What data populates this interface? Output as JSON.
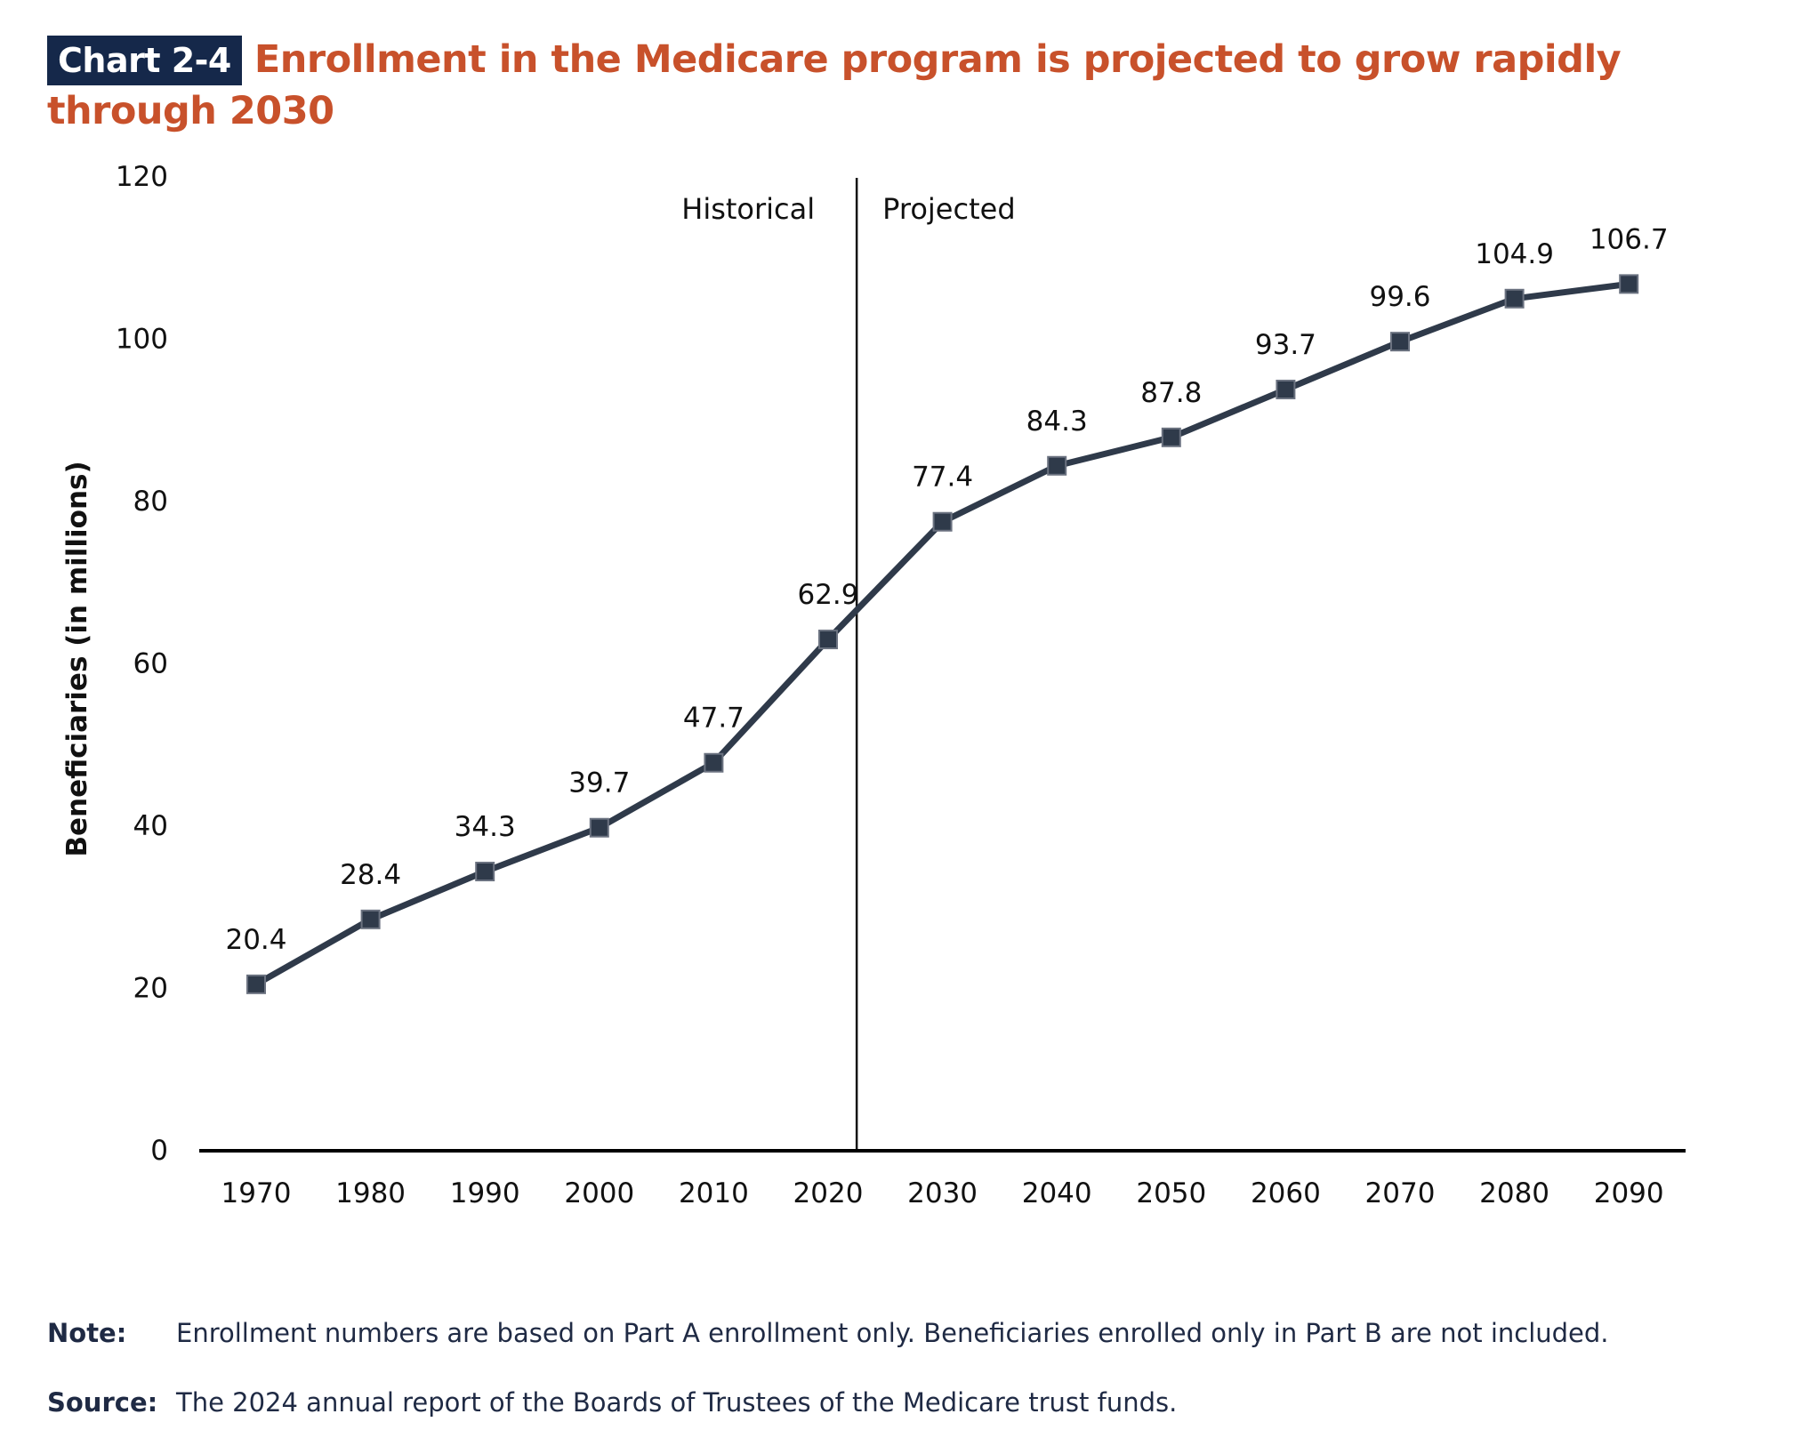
{
  "header": {
    "badge": "Chart 2-4",
    "title": "Enrollment in the Medicare program is projected to grow rapidly through 2030"
  },
  "chart_data": {
    "type": "line",
    "title": "Enrollment in the Medicare program is projected to grow rapidly through 2030",
    "xlabel": "",
    "ylabel": "Beneficiaries (in millions)",
    "ylim": [
      0,
      120
    ],
    "yticks": [
      "0",
      "20",
      "40",
      "60",
      "80",
      "100",
      "120"
    ],
    "categories": [
      "1970",
      "1980",
      "1990",
      "2000",
      "2010",
      "2020",
      "2030",
      "2040",
      "2050",
      "2060",
      "2070",
      "2080",
      "2090"
    ],
    "values": [
      20.4,
      28.4,
      34.3,
      39.7,
      47.7,
      62.9,
      77.4,
      84.3,
      87.8,
      93.7,
      99.6,
      104.9,
      106.7
    ],
    "data_labels": [
      "20.4",
      "28.4",
      "34.3",
      "39.7",
      "47.7",
      "62.9",
      "77.4",
      "84.3",
      "87.8",
      "93.7",
      "99.6",
      "104.9",
      "106.7"
    ],
    "divider": {
      "position_year": 2022.5,
      "left_label": "Historical",
      "right_label": "Projected"
    },
    "grid": false,
    "line_color": "#2f3a4a",
    "marker": "square"
  },
  "footer": {
    "note_label": "Note:",
    "note_text": "Enrollment numbers are based on Part A enrollment only. Beneficiaries enrolled only in Part B are not included.",
    "source_label": "Source:",
    "source_text": "The 2024 annual report of the Boards of Trustees of the Medicare trust funds."
  }
}
